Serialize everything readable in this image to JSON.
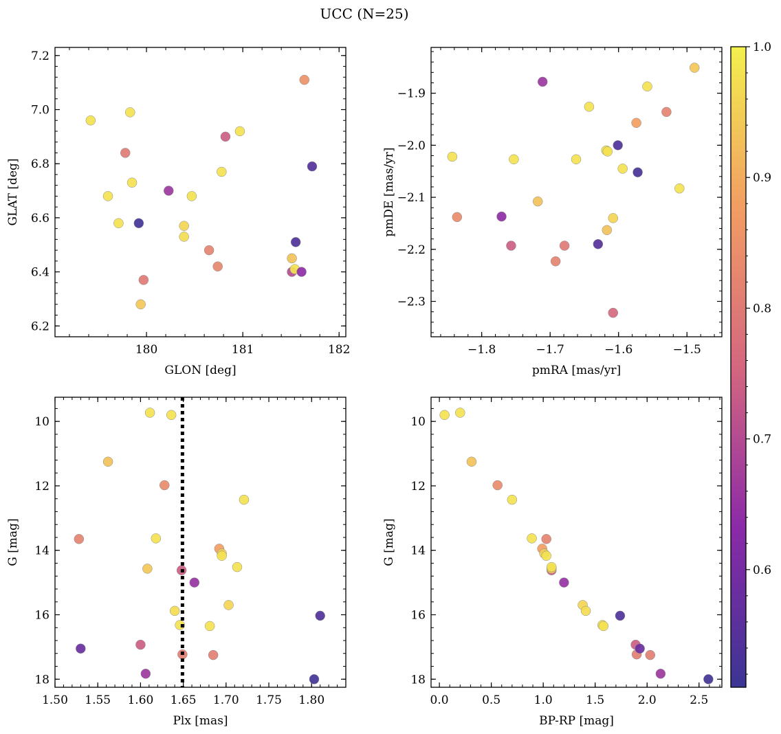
{
  "title": "UCC (N=25)",
  "colorbar": {
    "min": 0.51,
    "max": 1.0,
    "ticks": [
      0.6,
      0.7,
      0.8,
      0.9,
      1.0
    ],
    "tick_labels": [
      "0.6",
      "0.7",
      "0.8",
      "0.9",
      "1.0"
    ],
    "colormap": "plasma"
  },
  "chart_data": [
    {
      "type": "scatter",
      "panel": "top-left",
      "xlabel": "GLON [deg]",
      "ylabel": "GLAT [deg]",
      "xlim": [
        179.05,
        182.07
      ],
      "ylim": [
        6.16,
        7.23
      ],
      "xticks": [
        180,
        181,
        182
      ],
      "xtick_labels": [
        "180",
        "181",
        "182"
      ],
      "yticks": [
        6.2,
        6.4,
        6.6,
        6.8,
        7.0,
        7.2
      ],
      "ytick_labels": [
        "6.2",
        "6.4",
        "6.6",
        "6.8",
        "7.0",
        "7.2"
      ],
      "points": [
        {
          "x": 179.42,
          "y": 6.96,
          "c": 0.98
        },
        {
          "x": 179.6,
          "y": 6.68,
          "c": 0.98
        },
        {
          "x": 179.71,
          "y": 6.58,
          "c": 0.98
        },
        {
          "x": 179.78,
          "y": 6.84,
          "c": 0.8
        },
        {
          "x": 179.83,
          "y": 6.99,
          "c": 0.98
        },
        {
          "x": 179.85,
          "y": 6.73,
          "c": 0.98
        },
        {
          "x": 179.92,
          "y": 6.58,
          "c": 0.52
        },
        {
          "x": 179.94,
          "y": 6.28,
          "c": 0.94
        },
        {
          "x": 179.97,
          "y": 6.37,
          "c": 0.8
        },
        {
          "x": 180.23,
          "y": 6.7,
          "c": 0.66
        },
        {
          "x": 180.39,
          "y": 6.57,
          "c": 0.96
        },
        {
          "x": 180.39,
          "y": 6.53,
          "c": 0.97
        },
        {
          "x": 180.47,
          "y": 6.68,
          "c": 0.98
        },
        {
          "x": 180.65,
          "y": 6.48,
          "c": 0.82
        },
        {
          "x": 180.74,
          "y": 6.42,
          "c": 0.83
        },
        {
          "x": 180.78,
          "y": 6.77,
          "c": 0.98
        },
        {
          "x": 180.82,
          "y": 6.9,
          "c": 0.74
        },
        {
          "x": 180.97,
          "y": 6.92,
          "c": 0.98
        },
        {
          "x": 181.51,
          "y": 6.45,
          "c": 0.93
        },
        {
          "x": 181.51,
          "y": 6.4,
          "c": 0.7
        },
        {
          "x": 181.54,
          "y": 6.41,
          "c": 0.98
        },
        {
          "x": 181.55,
          "y": 6.51,
          "c": 0.54
        },
        {
          "x": 181.61,
          "y": 6.4,
          "c": 0.64
        },
        {
          "x": 181.64,
          "y": 7.11,
          "c": 0.85
        },
        {
          "x": 181.72,
          "y": 6.79,
          "c": 0.55
        }
      ]
    },
    {
      "type": "scatter",
      "panel": "top-right",
      "xlabel": "pmRA [mas/yr]",
      "ylabel": "pmDE [mas/yr]",
      "xlim": [
        -1.874,
        -1.449
      ],
      "ylim": [
        -2.368,
        -1.812
      ],
      "xticks": [
        -1.8,
        -1.7,
        -1.6,
        -1.5
      ],
      "xtick_labels": [
        "−1.8",
        "−1.7",
        "−1.6",
        "−1.5"
      ],
      "yticks": [
        -2.3,
        -2.2,
        -2.1,
        -2.0,
        -1.9
      ],
      "ytick_labels": [
        "−2.3",
        "−2.2",
        "−2.1",
        "−2.0",
        "−1.9"
      ],
      "points": [
        {
          "x": -1.843,
          "y": -2.022,
          "c": 0.98
        },
        {
          "x": -1.836,
          "y": -2.138,
          "c": 0.84
        },
        {
          "x": -1.771,
          "y": -2.137,
          "c": 0.64
        },
        {
          "x": -1.757,
          "y": -2.193,
          "c": 0.74
        },
        {
          "x": -1.753,
          "y": -2.027,
          "c": 0.98
        },
        {
          "x": -1.718,
          "y": -2.108,
          "c": 0.93
        },
        {
          "x": -1.711,
          "y": -1.878,
          "c": 0.66
        },
        {
          "x": -1.692,
          "y": -2.223,
          "c": 0.82
        },
        {
          "x": -1.679,
          "y": -2.193,
          "c": 0.8
        },
        {
          "x": -1.662,
          "y": -2.027,
          "c": 0.98
        },
        {
          "x": -1.643,
          "y": -1.926,
          "c": 0.98
        },
        {
          "x": -1.63,
          "y": -2.19,
          "c": 0.55
        },
        {
          "x": -1.618,
          "y": -2.01,
          "c": 0.98
        },
        {
          "x": -1.617,
          "y": -2.163,
          "c": 0.93
        },
        {
          "x": -1.616,
          "y": -2.012,
          "c": 0.98
        },
        {
          "x": -1.608,
          "y": -2.14,
          "c": 0.96
        },
        {
          "x": -1.608,
          "y": -2.322,
          "c": 0.76
        },
        {
          "x": -1.601,
          "y": -2.0,
          "c": 0.54
        },
        {
          "x": -1.594,
          "y": -2.045,
          "c": 0.98
        },
        {
          "x": -1.574,
          "y": -1.957,
          "c": 0.88
        },
        {
          "x": -1.572,
          "y": -2.052,
          "c": 0.53
        },
        {
          "x": -1.558,
          "y": -1.887,
          "c": 0.98
        },
        {
          "x": -1.53,
          "y": -1.936,
          "c": 0.82
        },
        {
          "x": -1.511,
          "y": -2.083,
          "c": 0.98
        },
        {
          "x": -1.489,
          "y": -1.851,
          "c": 0.94
        }
      ]
    },
    {
      "type": "scatter",
      "panel": "bottom-left",
      "xlabel": "Plx [mas]",
      "ylabel": "G [mag]",
      "xlim": [
        1.5,
        1.84
      ],
      "ylim": [
        18.25,
        9.25
      ],
      "y_inverted": true,
      "vline": {
        "x": 1.649,
        "style": "dotted",
        "color": "#000000"
      },
      "xticks": [
        1.5,
        1.55,
        1.6,
        1.65,
        1.7,
        1.75,
        1.8
      ],
      "xtick_labels": [
        "1.50",
        "1.55",
        "1.60",
        "1.65",
        "1.70",
        "1.75",
        "1.80"
      ],
      "yticks": [
        10,
        12,
        14,
        16,
        18
      ],
      "ytick_labels": [
        "10",
        "12",
        "14",
        "16",
        "18"
      ],
      "points": [
        {
          "x": 1.528,
          "y": 13.65,
          "c": 0.82
        },
        {
          "x": 1.53,
          "y": 17.05,
          "c": 0.58
        },
        {
          "x": 1.562,
          "y": 11.25,
          "c": 0.93
        },
        {
          "x": 1.6,
          "y": 16.93,
          "c": 0.74
        },
        {
          "x": 1.606,
          "y": 17.83,
          "c": 0.66
        },
        {
          "x": 1.608,
          "y": 14.57,
          "c": 0.94
        },
        {
          "x": 1.611,
          "y": 9.73,
          "c": 0.98
        },
        {
          "x": 1.618,
          "y": 13.63,
          "c": 0.98
        },
        {
          "x": 1.628,
          "y": 11.98,
          "c": 0.84
        },
        {
          "x": 1.636,
          "y": 9.8,
          "c": 0.98
        },
        {
          "x": 1.64,
          "y": 15.88,
          "c": 0.97
        },
        {
          "x": 1.646,
          "y": 16.32,
          "c": 0.98
        },
        {
          "x": 1.648,
          "y": 14.62,
          "c": 0.74
        },
        {
          "x": 1.649,
          "y": 17.23,
          "c": 0.81
        },
        {
          "x": 1.663,
          "y": 15.0,
          "c": 0.65
        },
        {
          "x": 1.681,
          "y": 16.35,
          "c": 0.98
        },
        {
          "x": 1.685,
          "y": 17.25,
          "c": 0.81
        },
        {
          "x": 1.692,
          "y": 13.95,
          "c": 0.88
        },
        {
          "x": 1.695,
          "y": 14.1,
          "c": 0.95
        },
        {
          "x": 1.695,
          "y": 14.17,
          "c": 0.98
        },
        {
          "x": 1.703,
          "y": 15.7,
          "c": 0.96
        },
        {
          "x": 1.713,
          "y": 14.52,
          "c": 0.98
        },
        {
          "x": 1.721,
          "y": 12.43,
          "c": 0.98
        },
        {
          "x": 1.803,
          "y": 18.0,
          "c": 0.52
        },
        {
          "x": 1.81,
          "y": 16.03,
          "c": 0.54
        }
      ]
    },
    {
      "type": "scatter",
      "panel": "bottom-right",
      "xlabel": "BP-RP [mag]",
      "ylabel": "G [mag]",
      "xlim": [
        -0.08,
        2.72
      ],
      "ylim": [
        18.25,
        9.25
      ],
      "y_inverted": true,
      "xticks": [
        0.0,
        0.5,
        1.0,
        1.5,
        2.0,
        2.5
      ],
      "xtick_labels": [
        "0.0",
        "0.5",
        "1.0",
        "1.5",
        "2.0",
        "2.5"
      ],
      "yticks": [
        10,
        12,
        14,
        16,
        18
      ],
      "ytick_labels": [
        "10",
        "12",
        "14",
        "16",
        "18"
      ],
      "points": [
        {
          "x": 0.05,
          "y": 9.8,
          "c": 0.98
        },
        {
          "x": 0.2,
          "y": 9.73,
          "c": 0.98
        },
        {
          "x": 0.31,
          "y": 11.25,
          "c": 0.93
        },
        {
          "x": 0.56,
          "y": 11.98,
          "c": 0.84
        },
        {
          "x": 0.7,
          "y": 12.43,
          "c": 0.98
        },
        {
          "x": 0.89,
          "y": 13.63,
          "c": 0.98
        },
        {
          "x": 0.99,
          "y": 13.95,
          "c": 0.88
        },
        {
          "x": 1.01,
          "y": 14.1,
          "c": 0.95
        },
        {
          "x": 1.03,
          "y": 13.65,
          "c": 0.82
        },
        {
          "x": 1.03,
          "y": 14.17,
          "c": 0.98
        },
        {
          "x": 1.08,
          "y": 14.62,
          "c": 0.74
        },
        {
          "x": 1.08,
          "y": 14.57,
          "c": 0.94
        },
        {
          "x": 1.08,
          "y": 14.52,
          "c": 0.98
        },
        {
          "x": 1.2,
          "y": 15.0,
          "c": 0.65
        },
        {
          "x": 1.38,
          "y": 15.7,
          "c": 0.96
        },
        {
          "x": 1.41,
          "y": 15.88,
          "c": 0.97
        },
        {
          "x": 1.57,
          "y": 16.32,
          "c": 0.98
        },
        {
          "x": 1.58,
          "y": 16.35,
          "c": 0.98
        },
        {
          "x": 1.74,
          "y": 16.03,
          "c": 0.54
        },
        {
          "x": 1.89,
          "y": 16.93,
          "c": 0.74
        },
        {
          "x": 1.9,
          "y": 17.23,
          "c": 0.81
        },
        {
          "x": 1.93,
          "y": 17.05,
          "c": 0.58
        },
        {
          "x": 2.03,
          "y": 17.25,
          "c": 0.81
        },
        {
          "x": 2.13,
          "y": 17.83,
          "c": 0.66
        },
        {
          "x": 2.59,
          "y": 18.0,
          "c": 0.52
        }
      ]
    }
  ]
}
